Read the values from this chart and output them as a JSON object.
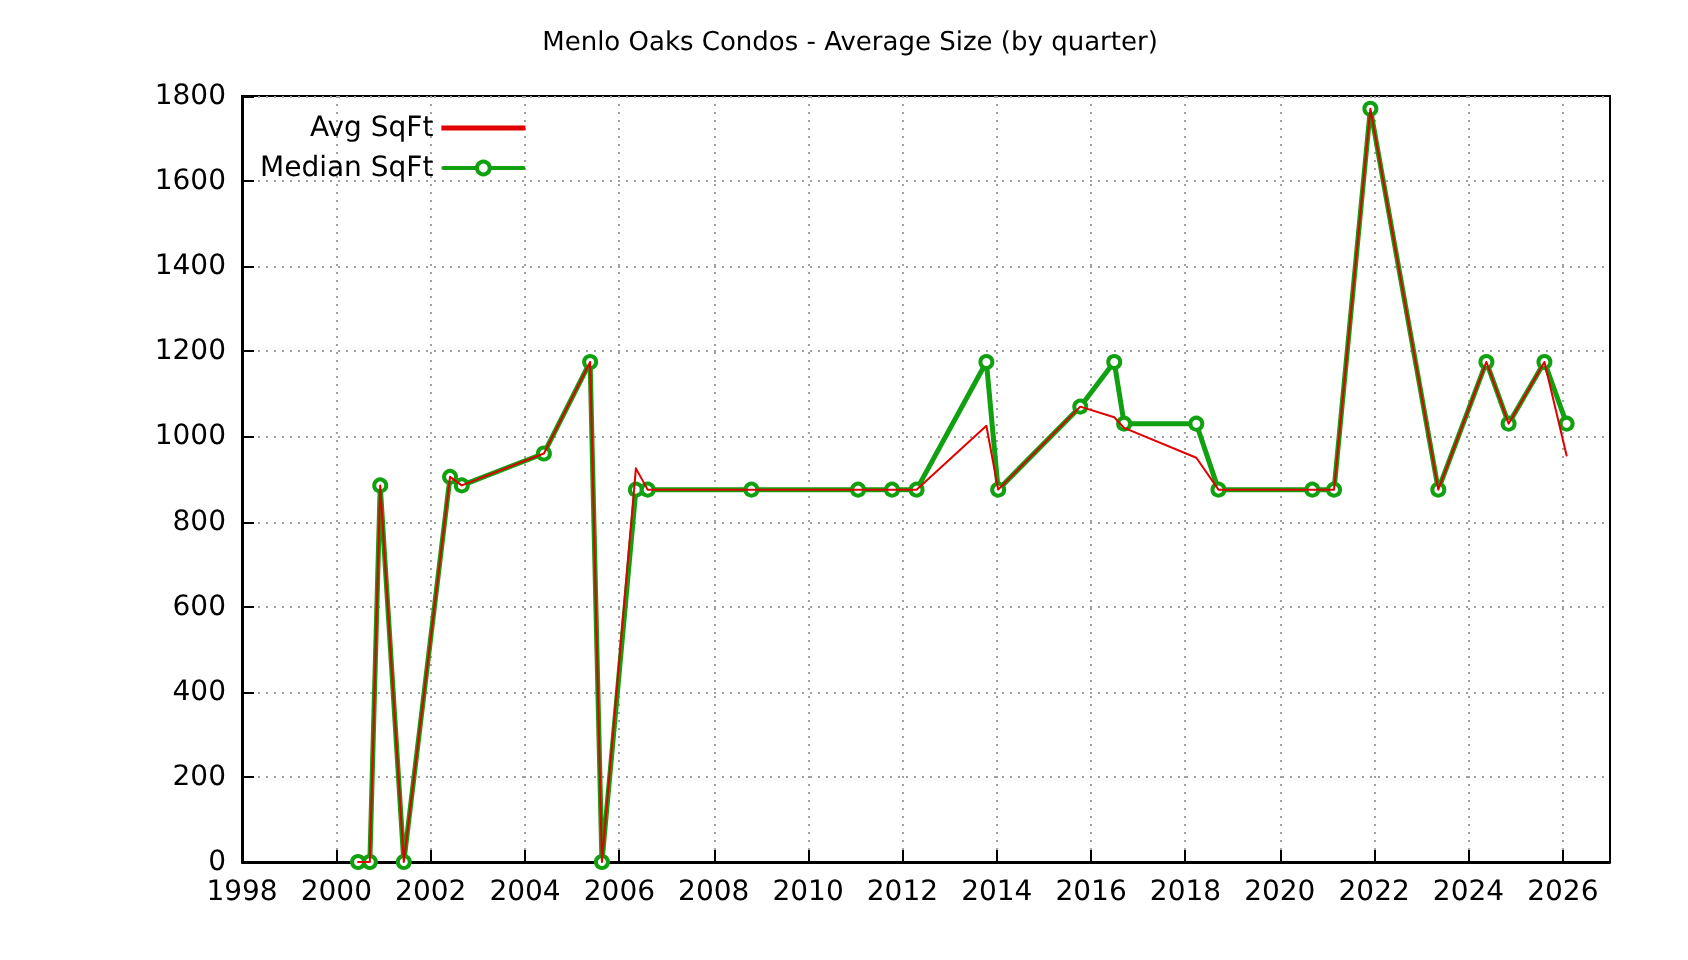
{
  "chart_data": {
    "type": "line",
    "title": "Menlo Oaks Condos - Average Size (by quarter)",
    "x": [
      2000.46,
      2000.71,
      2000.93,
      2001.43,
      2002.41,
      2002.66,
      2004.4,
      2005.38,
      2005.63,
      2006.35,
      2006.6,
      2008.8,
      2011.06,
      2011.78,
      2012.3,
      2013.78,
      2014.03,
      2015.77,
      2016.49,
      2016.7,
      2018.23,
      2018.7,
      2020.69,
      2021.15,
      2021.92,
      2023.36,
      2024.38,
      2024.85,
      2025.61,
      2026.08
    ],
    "series": [
      {
        "name": "Avg SqFt",
        "color": "#e00000",
        "marker": "none",
        "values": [
          0,
          0,
          885,
          0,
          905,
          885,
          960,
          1175,
          0,
          925,
          875,
          875,
          875,
          875,
          875,
          1025,
          875,
          1070,
          1045,
          1020,
          950,
          875,
          875,
          875,
          1770,
          875,
          1175,
          1030,
          1175,
          955
        ]
      },
      {
        "name": "Median SqFt",
        "color": "#10a010",
        "marker": "circle",
        "values": [
          0,
          0,
          885,
          0,
          905,
          885,
          960,
          1175,
          0,
          875,
          875,
          875,
          875,
          875,
          875,
          1175,
          875,
          1070,
          1175,
          1030,
          1030,
          875,
          875,
          875,
          1770,
          875,
          1175,
          1030,
          1175,
          1030
        ]
      }
    ],
    "xlim": [
      1998,
      2027
    ],
    "xticks": [
      1998,
      2000,
      2002,
      2004,
      2006,
      2008,
      2010,
      2012,
      2014,
      2016,
      2018,
      2020,
      2022,
      2024,
      2026
    ],
    "ylim": [
      0,
      1800
    ],
    "yticks": [
      0,
      200,
      400,
      600,
      800,
      1000,
      1200,
      1400,
      1600,
      1800
    ],
    "grid": true,
    "legend": "top left",
    "line_style": "solid"
  }
}
